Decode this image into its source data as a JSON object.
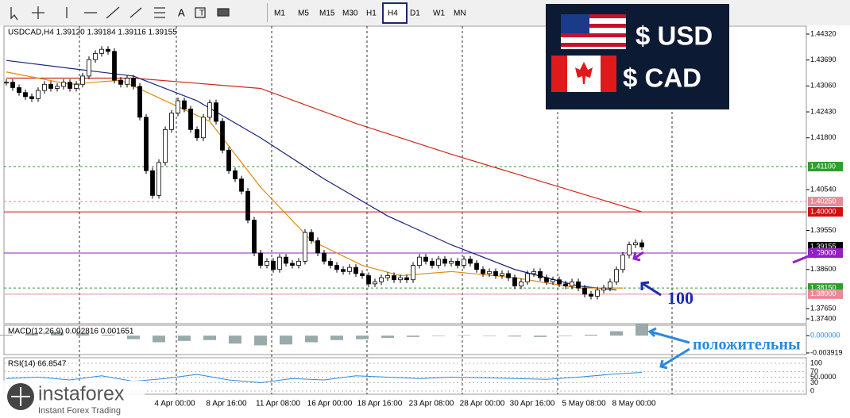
{
  "toolbar": {
    "timeframes": [
      "M1",
      "M5",
      "M15",
      "M30",
      "H1",
      "H4",
      "D1",
      "W1",
      "MN"
    ],
    "active": "H4"
  },
  "chart_data": {
    "type": "candlestick",
    "title": "USDCAD,H4  1.39120 1.39184 1.39116 1.39155",
    "close": [
      1.4315,
      1.4302,
      1.429,
      1.428,
      1.4275,
      1.4295,
      1.431,
      1.43,
      1.4305,
      1.4315,
      1.43,
      1.431,
      1.433,
      1.437,
      1.4385,
      1.4395,
      1.439,
      1.432,
      1.431,
      1.4325,
      1.4305,
      1.423,
      1.41,
      1.404,
      1.412,
      1.42,
      1.424,
      1.427,
      1.425,
      1.42,
      1.418,
      1.423,
      1.4265,
      1.422,
      1.415,
      1.41,
      1.408,
      1.405,
      1.398,
      1.39,
      1.387,
      1.388,
      1.386,
      1.389,
      1.3875,
      1.387,
      1.388,
      1.395,
      1.393,
      1.39,
      1.388,
      1.387,
      1.386,
      1.3855,
      1.3865,
      1.385,
      1.3845,
      1.3825,
      1.383,
      1.384,
      1.3845,
      1.3835,
      1.384,
      1.3835,
      1.387,
      1.389,
      1.388,
      1.387,
      1.3885,
      1.3875,
      1.388,
      1.387,
      1.3885,
      1.3875,
      1.386,
      1.385,
      1.3855,
      1.3845,
      1.385,
      1.384,
      1.382,
      1.383,
      1.385,
      1.3855,
      1.384,
      1.383,
      1.3835,
      1.3825,
      1.382,
      1.383,
      1.3815,
      1.38,
      1.3795,
      1.381,
      1.3815,
      1.383,
      1.386,
      1.3895,
      1.392,
      1.3925,
      1.3915
    ],
    "ylim": [
      1.374,
      1.4432
    ],
    "yticks": [
      {
        "value": 1.4432,
        "label": "1.44320"
      },
      {
        "value": 1.4369,
        "label": "1.43690"
      },
      {
        "value": 1.4306,
        "label": "1.43060"
      },
      {
        "value": 1.4243,
        "label": "1.42430"
      },
      {
        "value": 1.418,
        "label": "1.41800"
      },
      {
        "value": 1.4054,
        "label": "1.40540"
      },
      {
        "value": 1.3955,
        "label": "1.39550"
      },
      {
        "value": 1.386,
        "label": "1.38600"
      },
      {
        "value": 1.3765,
        "label": "1.37650"
      },
      {
        "value": 1.374,
        "label": "1.37400"
      }
    ],
    "levels": [
      {
        "value": 1.411,
        "label": "1.41100",
        "color": "#2e9e2e",
        "dash": true
      },
      {
        "value": 1.4025,
        "label": "1.40250",
        "color": "#e88a9a",
        "dash": true
      },
      {
        "value": 1.4,
        "label": "1.40000",
        "color": "#d01010",
        "dash": false
      },
      {
        "value": 1.39155,
        "label": "1.39155",
        "color": "#000000",
        "dash": false
      },
      {
        "value": 1.39,
        "label": "1.39000",
        "color": "#9020c0",
        "dash": false
      },
      {
        "value": 1.3815,
        "label": "1.38150",
        "color": "#2e9e2e",
        "dash": true
      },
      {
        "value": 1.38,
        "label": "1.38000",
        "color": "#e88a9a",
        "dash": false
      }
    ],
    "moving_averages": [
      {
        "color": "#cc2a1a",
        "x": [
          0,
          20,
          40,
          55,
          70,
          85,
          100
        ],
        "values": [
          1.4325,
          1.4325,
          1.43,
          1.4215,
          1.414,
          1.407,
          1.4
        ]
      },
      {
        "color": "#1a237e",
        "x": [
          0,
          12,
          20,
          30,
          40,
          50,
          60,
          70,
          80,
          90,
          96
        ],
        "values": [
          1.4368,
          1.4345,
          1.433,
          1.427,
          1.418,
          1.408,
          1.399,
          1.392,
          1.386,
          1.382,
          1.381
        ]
      },
      {
        "color": "#e08a10",
        "x": [
          0,
          10,
          18,
          25,
          32,
          40,
          48,
          56,
          62,
          70,
          80,
          90,
          97
        ],
        "values": [
          1.434,
          1.431,
          1.432,
          1.427,
          1.422,
          1.406,
          1.393,
          1.387,
          1.3845,
          1.3855,
          1.384,
          1.3815,
          1.3815
        ]
      }
    ],
    "annotation": "100",
    "annotation2": "положительны",
    "x_labels": [
      "4 Apr 00:00",
      "8 Apr 16:00",
      "11 Apr 08:00",
      "16 Apr 00:00",
      "18 Apr 16:00",
      "23 Apr 08:00",
      "28 Apr 00:00",
      "30 Apr 16:00",
      "5 May 08:00",
      "8 May 00:00"
    ],
    "macd": {
      "title": "MACD(12,26,9) 0.002816 0.001651",
      "values": [
        0.0002,
        0.0005,
        0.0008,
        0.0006,
        0.0002,
        -0.0008,
        -0.0015,
        -0.0012,
        -0.001,
        -0.0018,
        -0.0022,
        -0.002,
        -0.0015,
        -0.001,
        -0.0008,
        -0.0005,
        -0.0003,
        0.0,
        0.0001,
        -0.0001,
        -0.0002,
        -0.0003,
        -0.0001,
        0.0002,
        0.001,
        0.0028
      ],
      "ylim": [
        -0.003919,
        0.002
      ],
      "yticks": [
        {
          "value": 0,
          "label": "0.000000"
        },
        {
          "value": -0.003919,
          "label": "-0.003919"
        }
      ]
    },
    "rsi": {
      "title": "RSI(14) 66.8547",
      "values": [
        45,
        50,
        40,
        55,
        35,
        45,
        60,
        40,
        30,
        45,
        40,
        55,
        50,
        45,
        50,
        48,
        45,
        42,
        50,
        60,
        67
      ],
      "ylim": [
        0,
        100
      ],
      "yticks": [
        100,
        70,
        {
          "value": 50,
          "label": "50.0000"
        },
        30,
        0
      ]
    }
  },
  "overlay": {
    "usd": "$ USD",
    "cad": "$ CAD"
  },
  "logo": {
    "name": "instaforex",
    "tagline": "Instant Forex Trading"
  }
}
